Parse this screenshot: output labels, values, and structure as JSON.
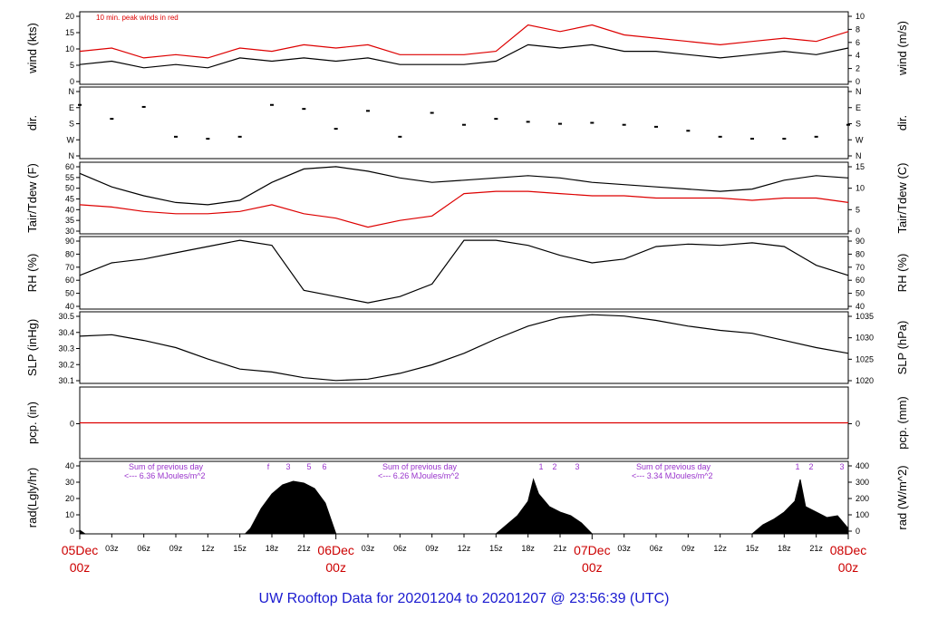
{
  "title": "UW Rooftop Data for 20201204  to  20201207 @ 23:56:39  (UTC)",
  "colors": {
    "title": "#1a1ad0",
    "days": "#cc0000",
    "red": "#dd0000",
    "purple": "#9933cc",
    "black": "#000000"
  },
  "time_axis": {
    "hours": [
      "03z",
      "06z",
      "09z",
      "12z",
      "15z",
      "18z",
      "21z",
      "03z",
      "06z",
      "09z",
      "12z",
      "15z",
      "18z",
      "21z",
      "03z",
      "06z",
      "09z",
      "12z",
      "15z",
      "18z",
      "21z"
    ],
    "days": [
      {
        "day": "05Dec",
        "hour": "00z"
      },
      {
        "day": "06Dec",
        "hour": "00z"
      },
      {
        "day": "07Dec",
        "hour": "00z"
      },
      {
        "day": "08Dec",
        "hour": "00z"
      }
    ]
  },
  "chart_data": [
    {
      "id": "wind",
      "type": "line",
      "ylabel_left": "wind (kts)",
      "ylabel_right": "wind (m/s)",
      "left_ticks": [
        "0",
        "5",
        "10",
        "15",
        "20"
      ],
      "right_ticks": [
        "0",
        "2",
        "4",
        "6",
        "8",
        "10"
      ],
      "ylim": [
        0,
        22
      ],
      "annotation": "10 min. peak winds in red",
      "series": [
        {
          "color": "#000000",
          "x": [
            0,
            3,
            6,
            9,
            12,
            15,
            18,
            21,
            24,
            27,
            30,
            33,
            36,
            39,
            42,
            45,
            48,
            51,
            54,
            57,
            60,
            63,
            66,
            69,
            72
          ],
          "values": [
            6,
            7,
            5,
            6,
            5,
            8,
            7,
            8,
            7,
            8,
            6,
            6,
            6,
            7,
            12,
            11,
            12,
            10,
            10,
            9,
            8,
            9,
            10,
            9,
            11
          ]
        },
        {
          "color": "#dd0000",
          "x": [
            0,
            3,
            6,
            9,
            12,
            15,
            18,
            21,
            24,
            27,
            30,
            33,
            36,
            39,
            42,
            45,
            48,
            51,
            54,
            57,
            60,
            63,
            66,
            69,
            72
          ],
          "values": [
            10,
            11,
            8,
            9,
            8,
            11,
            10,
            12,
            11,
            12,
            9,
            9,
            9,
            10,
            18,
            16,
            18,
            15,
            14,
            13,
            12,
            13,
            14,
            13,
            16
          ]
        }
      ]
    },
    {
      "id": "dir",
      "type": "scatter",
      "ylabel_left": "dir.",
      "ylabel_right": "dir.",
      "left_ticks": [
        "N",
        "W",
        "S",
        "E",
        "N"
      ],
      "right_ticks": [
        "N",
        "W",
        "S",
        "E",
        "N"
      ],
      "ylim": [
        0,
        360
      ],
      "series": [
        {
          "color": "#000000",
          "x": [
            0,
            3,
            6,
            9,
            12,
            15,
            18,
            21,
            24,
            27,
            30,
            33,
            36,
            39,
            42,
            45,
            48,
            51,
            54,
            57,
            60,
            63,
            66,
            69,
            72
          ],
          "values": [
            270,
            200,
            260,
            110,
            100,
            110,
            270,
            250,
            150,
            240,
            110,
            230,
            170,
            200,
            185,
            175,
            180,
            170,
            160,
            140,
            110,
            100,
            100,
            110,
            170
          ]
        }
      ]
    },
    {
      "id": "temp",
      "type": "line",
      "ylabel_left": "Tair/Tdew (F)",
      "ylabel_right": "Tair/Tdew (C)",
      "left_ticks": [
        "30",
        "35",
        "40",
        "45",
        "50",
        "55",
        "60"
      ],
      "right_ticks": [
        "0",
        "5",
        "10",
        "15"
      ],
      "ylim": [
        28,
        60
      ],
      "series": [
        {
          "color": "#000000",
          "x": [
            0,
            3,
            6,
            9,
            12,
            15,
            18,
            21,
            24,
            27,
            30,
            33,
            36,
            39,
            42,
            45,
            48,
            51,
            54,
            57,
            60,
            63,
            66,
            69,
            72
          ],
          "values": [
            55,
            49,
            45,
            42,
            41,
            43,
            51,
            57,
            58,
            56,
            53,
            51,
            52,
            53,
            54,
            53,
            51,
            50,
            49,
            48,
            47,
            48,
            52,
            54,
            53
          ]
        },
        {
          "color": "#dd0000",
          "x": [
            0,
            3,
            6,
            9,
            12,
            15,
            18,
            21,
            24,
            27,
            30,
            33,
            36,
            39,
            42,
            45,
            48,
            51,
            54,
            57,
            60,
            63,
            66,
            69,
            72
          ],
          "values": [
            41,
            40,
            38,
            37,
            37,
            38,
            41,
            37,
            35,
            31,
            34,
            36,
            46,
            47,
            47,
            46,
            45,
            45,
            44,
            44,
            44,
            43,
            44,
            44,
            42
          ]
        }
      ]
    },
    {
      "id": "rh",
      "type": "line",
      "ylabel_left": "RH (%)",
      "ylabel_right": "RH (%)",
      "left_ticks": [
        "40",
        "50",
        "60",
        "70",
        "80",
        "90"
      ],
      "right_ticks": [
        "40",
        "50",
        "60",
        "70",
        "80",
        "90"
      ],
      "ylim": [
        35,
        93
      ],
      "series": [
        {
          "color": "#000000",
          "x": [
            0,
            3,
            6,
            9,
            12,
            15,
            18,
            21,
            24,
            27,
            30,
            33,
            36,
            39,
            42,
            45,
            48,
            51,
            54,
            57,
            60,
            63,
            66,
            69,
            72
          ],
          "values": [
            62,
            72,
            75,
            80,
            85,
            90,
            86,
            50,
            45,
            40,
            45,
            55,
            90,
            90,
            86,
            78,
            72,
            75,
            85,
            87,
            86,
            88,
            85,
            70,
            62
          ]
        }
      ]
    },
    {
      "id": "slp",
      "type": "line",
      "ylabel_left": "SLP (inHg)",
      "ylabel_right": "SLP (hPa)",
      "left_ticks": [
        "30.1",
        "30.2",
        "30.3",
        "30.4",
        "30.5"
      ],
      "right_ticks": [
        "1020",
        "1025",
        "1030",
        "1035"
      ],
      "ylim": [
        30.07,
        30.57
      ],
      "series": [
        {
          "color": "#000000",
          "x": [
            0,
            3,
            6,
            9,
            12,
            15,
            18,
            21,
            24,
            27,
            30,
            33,
            36,
            39,
            42,
            45,
            48,
            51,
            54,
            57,
            60,
            63,
            66,
            69,
            72
          ],
          "values": [
            30.4,
            30.41,
            30.37,
            30.32,
            30.24,
            30.17,
            30.15,
            30.11,
            30.09,
            30.1,
            30.14,
            30.2,
            30.28,
            30.38,
            30.47,
            30.53,
            30.55,
            30.54,
            30.51,
            30.47,
            30.44,
            30.42,
            30.37,
            30.32,
            30.28
          ]
        }
      ]
    },
    {
      "id": "pcp",
      "type": "line",
      "ylabel_left": "pcp. (in)",
      "ylabel_right": "pcp. (mm)",
      "left_ticks": [
        "0"
      ],
      "right_ticks": [
        "0"
      ],
      "ylim": [
        -1,
        1
      ],
      "series": [
        {
          "color": "#dd0000",
          "x": [
            0,
            72
          ],
          "values": [
            0,
            0
          ]
        }
      ]
    },
    {
      "id": "rad",
      "type": "area",
      "ylabel_left": "rad(Lgly/hr)",
      "ylabel_right": "rad (W/m^2)",
      "left_ticks": [
        "0",
        "10",
        "20",
        "30",
        "40"
      ],
      "right_ticks": [
        "0",
        "100",
        "200",
        "300",
        "400"
      ],
      "ylim": [
        0,
        40
      ],
      "day_notes": [
        {
          "line1": "Sum of previous day",
          "line2": "<--- 6.36 MJoules/m^2"
        },
        {
          "line1": "Sum of previous day",
          "line2": "<--- 6.26 MJoules/m^2"
        },
        {
          "line1": "Sum of previous day",
          "line2": "<--- 3.34 MJoules/m^2"
        }
      ],
      "markers": [
        "f",
        "3",
        "5",
        "6",
        "1",
        "2",
        "3",
        "1",
        "2",
        "3"
      ],
      "series": [
        {
          "color": "#000000",
          "x": [
            0,
            0.5,
            15.5,
            16,
            17,
            18,
            19,
            20,
            21,
            22,
            23,
            24,
            39,
            40,
            41,
            42,
            42.5,
            43,
            44,
            45,
            46,
            47,
            48,
            63,
            64,
            65,
            66,
            67,
            67.5,
            68,
            69,
            70,
            71,
            72
          ],
          "values": [
            2,
            0,
            0,
            3,
            14,
            22,
            27,
            29,
            28,
            25,
            17,
            0,
            0,
            5,
            10,
            18,
            30,
            22,
            15,
            12,
            10,
            6,
            0,
            0,
            5,
            8,
            12,
            18,
            30,
            15,
            12,
            9,
            10,
            3
          ]
        }
      ]
    }
  ]
}
